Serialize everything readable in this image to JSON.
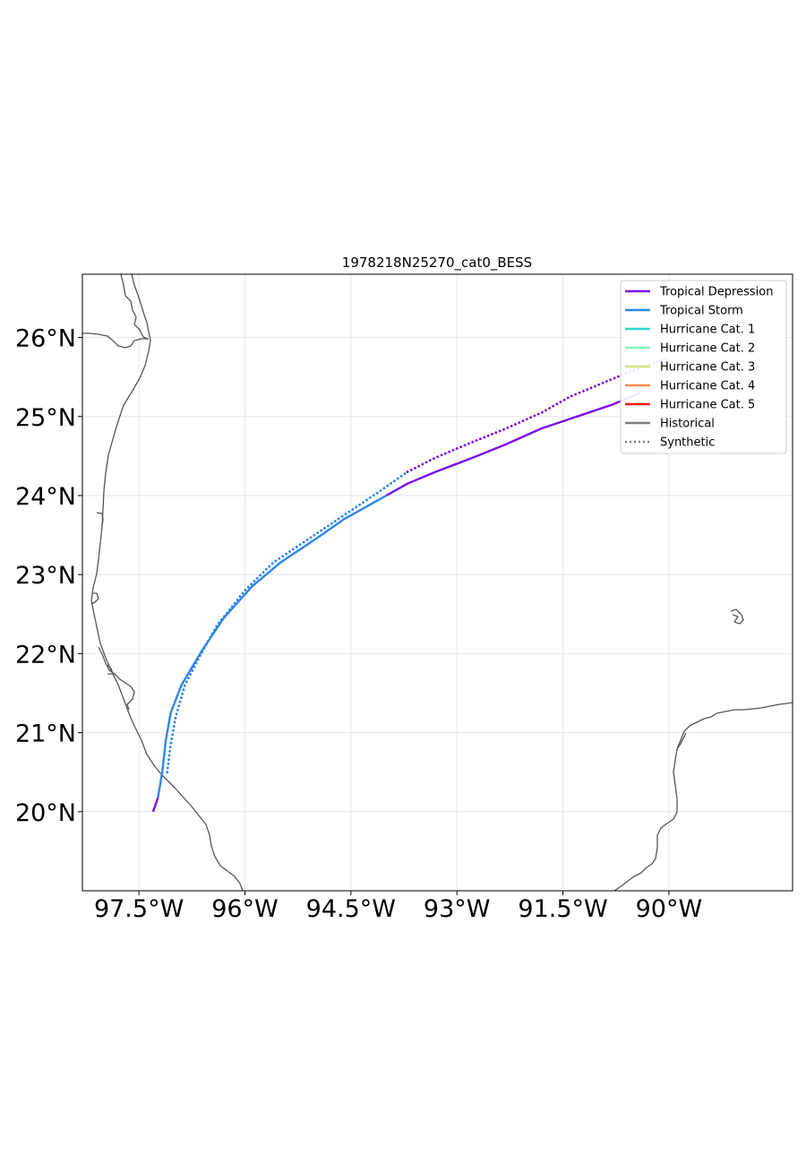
{
  "chart_data": {
    "type": "line",
    "title": "1978218N25270_cat0_BESS",
    "xlabel": "",
    "ylabel": "",
    "xlim": [
      -98.3,
      -88.25
    ],
    "ylim": [
      19.0,
      26.8
    ],
    "x_ticks": [
      -97.5,
      -96.0,
      -94.5,
      -93.0,
      -91.5,
      -90.0
    ],
    "x_tick_labels": [
      "97.5°W",
      "96°W",
      "94.5°W",
      "93°W",
      "91.5°W",
      "90°W"
    ],
    "y_ticks": [
      20,
      21,
      22,
      23,
      24,
      25,
      26
    ],
    "y_tick_labels": [
      "20°N",
      "21°N",
      "22°N",
      "23°N",
      "24°N",
      "25°N",
      "26°N"
    ],
    "grid": true,
    "legend_position": "top-right",
    "legend": [
      {
        "label": "Tropical Depression",
        "color": "#7b0ee8",
        "style": "solid"
      },
      {
        "label": "Tropical Storm",
        "color": "#2e86e6",
        "style": "solid"
      },
      {
        "label": "Hurricane Cat. 1",
        "color": "#2fd6d0",
        "style": "solid"
      },
      {
        "label": "Hurricane Cat. 2",
        "color": "#8af5b9",
        "style": "solid"
      },
      {
        "label": "Hurricane Cat. 3",
        "color": "#d6e07e",
        "style": "solid"
      },
      {
        "label": "Hurricane Cat. 4",
        "color": "#f7884e",
        "style": "solid"
      },
      {
        "label": "Hurricane Cat. 5",
        "color": "#f71b0f",
        "style": "solid"
      },
      {
        "label": "Historical",
        "color": "#808080",
        "style": "solid"
      },
      {
        "label": "Synthetic",
        "color": "#808080",
        "style": "dotted"
      }
    ],
    "series": [
      {
        "kind": "historical",
        "segments": [
          {
            "category": "td",
            "color": "#7b0ee8",
            "points": [
              [
                -97.3,
                20.0
              ],
              [
                -97.23,
                20.18
              ]
            ]
          },
          {
            "category": "ts",
            "color": "#2e86e6",
            "points": [
              [
                -97.23,
                20.18
              ],
              [
                -97.17,
                20.5
              ],
              [
                -97.12,
                20.9
              ],
              [
                -97.05,
                21.25
              ],
              [
                -96.9,
                21.6
              ],
              [
                -96.6,
                22.05
              ],
              [
                -96.3,
                22.45
              ],
              [
                -95.9,
                22.85
              ],
              [
                -95.5,
                23.15
              ],
              [
                -95.0,
                23.45
              ],
              [
                -94.6,
                23.7
              ],
              [
                -94.2,
                23.9
              ],
              [
                -94.0,
                24.0
              ]
            ]
          },
          {
            "category": "td",
            "color": "#7b0ee8",
            "points": [
              [
                -94.0,
                24.0
              ],
              [
                -93.7,
                24.15
              ],
              [
                -93.3,
                24.3
              ],
              [
                -92.8,
                24.47
              ],
              [
                -92.3,
                24.65
              ],
              [
                -91.8,
                24.85
              ],
              [
                -91.3,
                25.0
              ],
              [
                -90.8,
                25.15
              ],
              [
                -90.4,
                25.3
              ]
            ]
          }
        ]
      },
      {
        "kind": "synthetic",
        "segments": [
          {
            "category": "ts",
            "color": "#2e86e6",
            "points": [
              [
                -97.1,
                20.5
              ],
              [
                -97.05,
                20.85
              ],
              [
                -96.98,
                21.2
              ],
              [
                -96.85,
                21.6
              ],
              [
                -96.65,
                21.95
              ],
              [
                -96.4,
                22.35
              ],
              [
                -96.0,
                22.8
              ],
              [
                -95.6,
                23.15
              ],
              [
                -95.1,
                23.45
              ],
              [
                -94.6,
                23.75
              ],
              [
                -94.1,
                24.05
              ],
              [
                -93.7,
                24.3
              ]
            ]
          },
          {
            "category": "td",
            "color": "#7b0ee8",
            "points": [
              [
                -93.7,
                24.3
              ],
              [
                -93.3,
                24.48
              ],
              [
                -92.8,
                24.67
              ],
              [
                -92.3,
                24.85
              ],
              [
                -91.8,
                25.05
              ],
              [
                -91.4,
                25.25
              ],
              [
                -91.0,
                25.4
              ],
              [
                -90.6,
                25.55
              ],
              [
                -90.3,
                25.65
              ],
              [
                -90.0,
                25.75
              ]
            ]
          }
        ]
      }
    ]
  },
  "basemap": {
    "coast_color": "#555555",
    "grid_color": "#e6e6e6"
  }
}
